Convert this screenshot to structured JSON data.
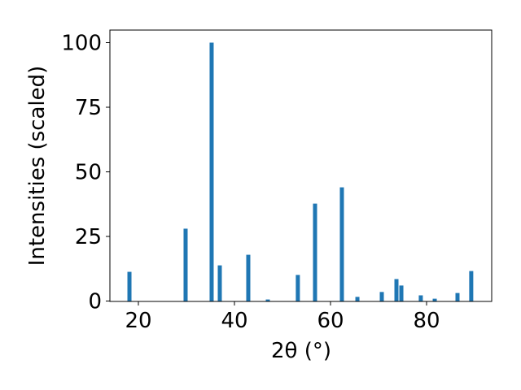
{
  "chart_data": {
    "type": "bar",
    "x_label": "2θ (°)",
    "y_label": "Intensities (scaled)",
    "x": [
      18.14,
      29.83,
      35.25,
      36.95,
      42.88,
      46.95,
      53.2,
      56.78,
      62.37,
      65.6,
      70.68,
      73.73,
      74.75,
      78.8,
      81.7,
      86.44,
      89.3
    ],
    "values": [
      11.3,
      28.0,
      100,
      13.8,
      17.9,
      0.6,
      10.1,
      37.7,
      44.0,
      1.6,
      3.5,
      8.5,
      6.0,
      2.2,
      0.9,
      3.1,
      11.6
    ],
    "color": "#1f77b4",
    "xlim": [
      14.07,
      93.56
    ],
    "xticks": [
      20,
      40,
      60,
      80
    ],
    "ylim": [
      -0.16,
      104.87
    ],
    "yticks": [
      0,
      25,
      50,
      75,
      100
    ],
    "grid": false
  }
}
